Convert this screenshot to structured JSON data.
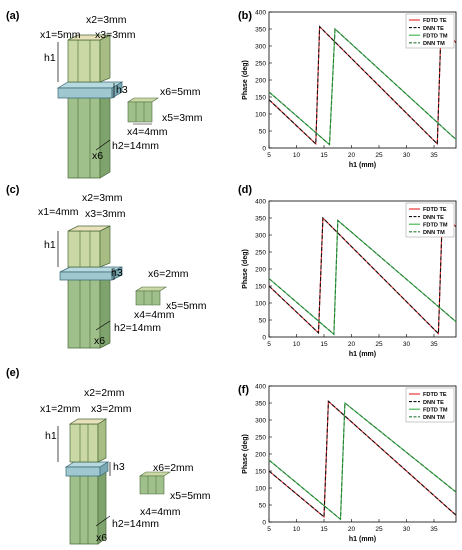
{
  "panels": [
    {
      "label": "(a)",
      "dims": {
        "x1": "x1=5mm",
        "x2": "x2=3mm",
        "x3": "x3=3mm",
        "x4": "x4=4mm",
        "x5": "x5=3mm",
        "x6": "x6=5mm",
        "h1": "h1",
        "h2": "h2=14mm",
        "h3": "h3",
        "x6b": "x6"
      }
    },
    {
      "label": "(c)",
      "dims": {
        "x1": "x1=4mm",
        "x2": "x2=3mm",
        "x3": "x3=3mm",
        "x4": "x4=4mm",
        "x5": "x5=5mm",
        "x6": "x6=2mm",
        "h1": "h1",
        "h2": "h2=14mm",
        "h3": "h3",
        "x6b": "x6"
      }
    },
    {
      "label": "(e)",
      "dims": {
        "x1": "x1=2mm",
        "x2": "x2=2mm",
        "x3": "x3=2mm",
        "x4": "x4=4mm",
        "x5": "x5=5mm",
        "x6": "x6=2mm",
        "h1": "h1",
        "h2": "h2=14mm",
        "h3": "h3",
        "x6b": "x6"
      }
    }
  ],
  "colors": {
    "fdtd_te": "#e8262b",
    "dnn_te": "#111111",
    "fdtd_tm": "#3bb34a",
    "dnn_tm": "#2a7a3a",
    "pillar_top": "#d8cfa3",
    "pillar": "#9fc08a",
    "pillar_dark": "#7fa36c",
    "plate": "#9ec7d0",
    "plate_dark": "#7aa9b3"
  },
  "chart_data": [
    {
      "label": "(b)",
      "type": "line",
      "xlabel": "h1 (mm)",
      "ylabel": "Phase (deg)",
      "xlim": [
        5,
        39
      ],
      "ylim": [
        0,
        400
      ],
      "xticks": [
        5,
        10,
        15,
        20,
        25,
        30,
        35
      ],
      "yticks": [
        0,
        50,
        100,
        150,
        200,
        250,
        300,
        350,
        400
      ],
      "legend": [
        "FDTD TE",
        "DNN TE",
        "FDTD TM",
        "DNN TM"
      ],
      "series": [
        {
          "name": "FDTD TE",
          "style": "solid",
          "color": "#e8262b",
          "x": [
            5,
            13.5,
            13.5,
            14.2,
            35.6,
            35.6,
            36.3,
            39
          ],
          "y": [
            142,
            12,
            12,
            357,
            12,
            12,
            357,
            310
          ]
        },
        {
          "name": "DNN TE",
          "style": "dashed",
          "color": "#111111",
          "x": [
            5,
            13.5,
            13.5,
            14.2,
            35.6,
            35.6,
            36.3,
            39
          ],
          "y": [
            142,
            12,
            12,
            357,
            12,
            12,
            357,
            310
          ]
        },
        {
          "name": "FDTD TM",
          "style": "solid",
          "color": "#3bb34a",
          "x": [
            5,
            16,
            16,
            17,
            39
          ],
          "y": [
            165,
            10,
            10,
            350,
            25
          ]
        },
        {
          "name": "DNN TM",
          "style": "dashed",
          "color": "#2a7a3a",
          "x": [
            5,
            16,
            16,
            17,
            39
          ],
          "y": [
            165,
            10,
            10,
            350,
            25
          ]
        }
      ]
    },
    {
      "label": "(d)",
      "type": "line",
      "xlabel": "h1 (mm)",
      "ylabel": "Phase (deg)",
      "xlim": [
        5,
        39
      ],
      "ylim": [
        0,
        400
      ],
      "xticks": [
        5,
        10,
        15,
        20,
        25,
        30,
        35
      ],
      "yticks": [
        0,
        50,
        100,
        150,
        200,
        250,
        300,
        350,
        400
      ],
      "legend": [
        "FDTD TE",
        "DNN TE",
        "FDTD TM",
        "DNN TM"
      ],
      "series": [
        {
          "name": "FDTD TE",
          "style": "solid",
          "color": "#e8262b",
          "x": [
            5,
            14,
            14,
            14.8,
            35.8,
            35.8,
            36.5,
            39
          ],
          "y": [
            150,
            12,
            12,
            350,
            10,
            10,
            355,
            325
          ]
        },
        {
          "name": "DNN TE",
          "style": "dashed",
          "color": "#111111",
          "x": [
            5,
            14,
            14,
            14.8,
            35.8,
            35.8,
            36.5,
            39
          ],
          "y": [
            150,
            12,
            12,
            350,
            10,
            10,
            355,
            325
          ]
        },
        {
          "name": "FDTD TM",
          "style": "solid",
          "color": "#3bb34a",
          "x": [
            5,
            16.8,
            16.8,
            17.5,
            39
          ],
          "y": [
            172,
            8,
            8,
            343,
            45
          ]
        },
        {
          "name": "DNN TM",
          "style": "dashed",
          "color": "#2a7a3a",
          "x": [
            5,
            16.8,
            16.8,
            17.5,
            39
          ],
          "y": [
            172,
            8,
            8,
            343,
            45
          ]
        }
      ]
    },
    {
      "label": "(f)",
      "type": "line",
      "xlabel": "h1 (mm)",
      "ylabel": "Phase (deg)",
      "xlim": [
        5,
        39
      ],
      "ylim": [
        0,
        400
      ],
      "xticks": [
        5,
        10,
        15,
        20,
        25,
        30,
        35
      ],
      "yticks": [
        0,
        50,
        100,
        150,
        200,
        250,
        300,
        350,
        400
      ],
      "legend": [
        "FDTD TE",
        "DNN TE",
        "FDTD TM",
        "DNN TM"
      ],
      "series": [
        {
          "name": "FDTD TE",
          "style": "solid",
          "color": "#e8262b",
          "x": [
            5,
            15,
            15,
            15.8,
            39
          ],
          "y": [
            150,
            15,
            15,
            355,
            20
          ]
        },
        {
          "name": "DNN TE",
          "style": "dashed",
          "color": "#111111",
          "x": [
            5,
            15,
            15,
            15.8,
            39
          ],
          "y": [
            150,
            15,
            15,
            355,
            20
          ]
        },
        {
          "name": "FDTD TM",
          "style": "solid",
          "color": "#3bb34a",
          "x": [
            5,
            18,
            18,
            18.8,
            39
          ],
          "y": [
            182,
            8,
            8,
            350,
            88
          ]
        },
        {
          "name": "DNN TM",
          "style": "dashed",
          "color": "#2a7a3a",
          "x": [
            5,
            18,
            18,
            18.8,
            39
          ],
          "y": [
            182,
            8,
            8,
            350,
            88
          ]
        }
      ]
    }
  ]
}
